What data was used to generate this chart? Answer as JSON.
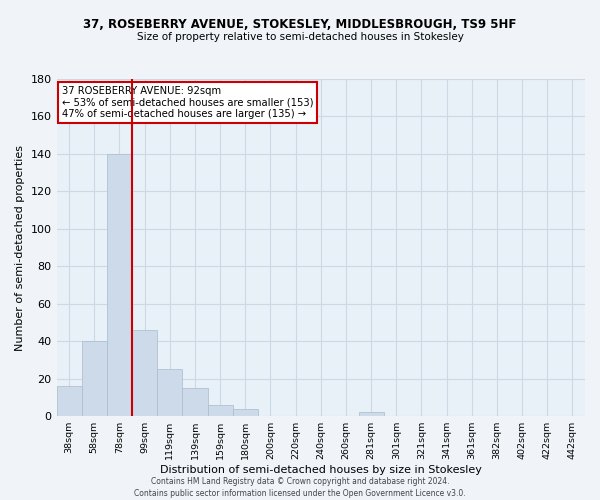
{
  "title_line1": "37, ROSEBERRY AVENUE, STOKESLEY, MIDDLESBROUGH, TS9 5HF",
  "title_line2": "Size of property relative to semi-detached houses in Stokesley",
  "bar_labels": [
    "38sqm",
    "58sqm",
    "78sqm",
    "99sqm",
    "119sqm",
    "139sqm",
    "159sqm",
    "180sqm",
    "200sqm",
    "220sqm",
    "240sqm",
    "260sqm",
    "281sqm",
    "301sqm",
    "321sqm",
    "341sqm",
    "361sqm",
    "382sqm",
    "402sqm",
    "422sqm",
    "442sqm"
  ],
  "bar_values": [
    16,
    40,
    140,
    46,
    25,
    15,
    6,
    4,
    0,
    0,
    0,
    0,
    2,
    0,
    0,
    0,
    0,
    0,
    0,
    0,
    0
  ],
  "bar_color": "#ccdaea",
  "bar_edgecolor": "#aabbcc",
  "property_line_color": "#cc0000",
  "annotation_line1": "37 ROSEBERRY AVENUE: 92sqm",
  "annotation_line2": "← 53% of semi-detached houses are smaller (153)",
  "annotation_line3": "47% of semi-detached houses are larger (135) →",
  "annotation_box_facecolor": "#ffffff",
  "annotation_box_edgecolor": "#cc0000",
  "xlabel": "Distribution of semi-detached houses by size in Stokesley",
  "ylabel": "Number of semi-detached properties",
  "ylim": [
    0,
    180
  ],
  "yticks": [
    0,
    20,
    40,
    60,
    80,
    100,
    120,
    140,
    160,
    180
  ],
  "grid_color": "#ccd8e4",
  "footer_line1": "Contains HM Land Registry data © Crown copyright and database right 2024.",
  "footer_line2": "Contains public sector information licensed under the Open Government Licence v3.0.",
  "fig_facecolor": "#f0f4f8",
  "ax_facecolor": "#e8f0f8"
}
